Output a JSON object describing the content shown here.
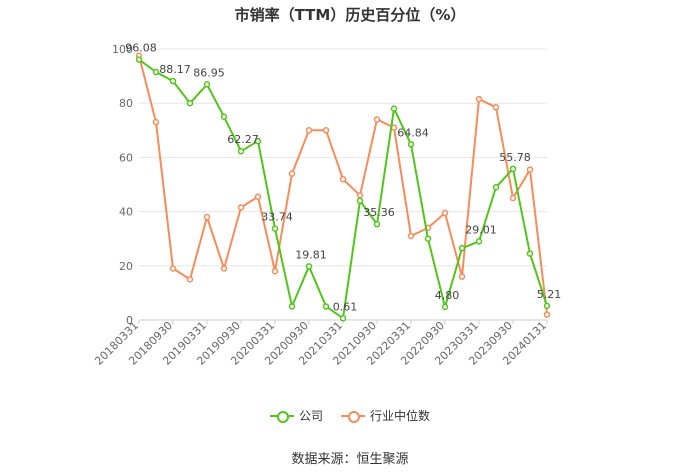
{
  "chart_data": {
    "type": "line",
    "title": "市销率（TTM）历史百分位（%）",
    "source": "数据来源：恒生聚源",
    "ylim": [
      0,
      100
    ],
    "yticks": [
      0,
      20,
      40,
      60,
      80,
      100
    ],
    "grid": true,
    "legend_position": "bottom",
    "x_tick_labels": [
      "20180331",
      "20180930",
      "20190331",
      "20190930",
      "20200331",
      "20200930",
      "20210331",
      "20210930",
      "20220331",
      "20220930",
      "20230331",
      "20230930",
      "20240131"
    ],
    "x_tick_indices": [
      0,
      2,
      4,
      6,
      8,
      10,
      12,
      14,
      16,
      18,
      20,
      22,
      24
    ],
    "x": [
      "20180331",
      "20180630",
      "20180930",
      "20181231",
      "20190331",
      "20190630",
      "20190930",
      "20191231",
      "20200331",
      "20200630",
      "20200930",
      "20201231",
      "20210331",
      "20210630",
      "20210930",
      "20211231",
      "20220331",
      "20220630",
      "20220930",
      "20221231",
      "20230331",
      "20230630",
      "20230930",
      "20231231",
      "20240131"
    ],
    "series": [
      {
        "name": "公司",
        "color": "#52c41a",
        "values": [
          96.08,
          91.5,
          88.17,
          80.0,
          86.95,
          75.0,
          62.27,
          66.0,
          33.74,
          5.0,
          19.81,
          5.0,
          0.61,
          44.0,
          35.36,
          78.0,
          64.84,
          30.0,
          4.8,
          26.5,
          29.01,
          49.0,
          55.78,
          24.5,
          5.21
        ],
        "labels": {
          "0": "96.08",
          "2": "88.17",
          "4": "86.95",
          "6": "62.27",
          "8": "33.74",
          "10": "19.81",
          "12": "0.61",
          "14": "35.36",
          "16": "64.84",
          "18": "4.80",
          "20": "29.01",
          "22": "55.78",
          "24": "5.21"
        }
      },
      {
        "name": "行业中位数",
        "color": "#f58c5a",
        "values": [
          97.5,
          73.0,
          19.0,
          15.0,
          38.0,
          19.0,
          41.5,
          45.5,
          18.0,
          54.0,
          70.0,
          70.0,
          52.0,
          46.0,
          74.0,
          71.0,
          31.0,
          34.0,
          39.5,
          16.0,
          81.5,
          78.5,
          45.0,
          55.5,
          2.0
        ]
      }
    ]
  }
}
